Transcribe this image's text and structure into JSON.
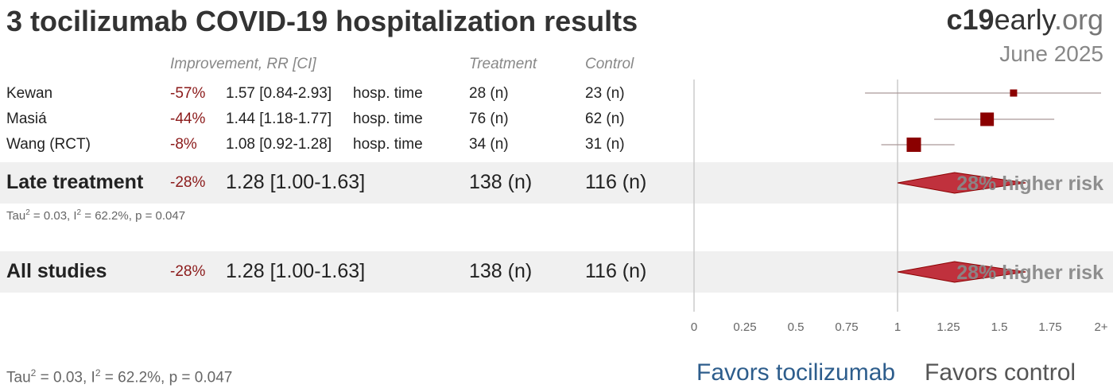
{
  "title": "3 tocilizumab COVID-19 hospitalization results",
  "brand": {
    "bold": "c19",
    "mid": "early",
    "light": ".org"
  },
  "date": "June 2025",
  "headers": {
    "improvement": "Improvement, RR [CI]",
    "treatment": "Treatment",
    "control": "Control"
  },
  "studies": [
    {
      "name": "Kewan",
      "improvement": "-57%",
      "ci_text": "1.57 [0.84-2.93]",
      "outcome": "hosp. time",
      "treatment": "28 (n)",
      "control": "23 (n)"
    },
    {
      "name": "Masiá",
      "improvement": "-44%",
      "ci_text": "1.44 [1.18-1.77]",
      "outcome": "hosp. time",
      "treatment": "76 (n)",
      "control": "62 (n)"
    },
    {
      "name": "Wang (RCT)",
      "improvement": "-8%",
      "ci_text": "1.08 [0.92-1.28]",
      "outcome": "hosp. time",
      "treatment": "34 (n)",
      "control": "31 (n)"
    }
  ],
  "late": {
    "name": "Late treatment",
    "improvement": "-28%",
    "ci_text": "1.28 [1.00-1.63]",
    "treatment": "138 (n)",
    "control": "116 (n)",
    "stats": "= 0.03, I",
    "stats2": "= 62.2%, p = 0.047",
    "label": "28% higher risk"
  },
  "all": {
    "name": "All studies",
    "improvement": "-28%",
    "ci_text": "1.28 [1.00-1.63]",
    "treatment": "138 (n)",
    "control": "116 (n)",
    "label": "28% higher risk"
  },
  "footer_stats": {
    "tau": "Tau",
    "a": "= 0.03, I",
    "b": "= 62.2%, p = 0.047"
  },
  "favors": {
    "left": "Favors tocilizumab",
    "right": "Favors control"
  },
  "colors": {
    "marker": "#8b0000",
    "diamond": "#c0313d",
    "favors_left": "#2d5d8c"
  },
  "chart_data": {
    "type": "forest",
    "xlabel": "",
    "ylabel": "",
    "xlim": [
      0,
      2
    ],
    "reference_line": 1,
    "tick_labels": [
      "0",
      "0.25",
      "0.5",
      "0.75",
      "1",
      "1.25",
      "1.5",
      "1.75",
      "2+"
    ],
    "tick_values": [
      0,
      0.25,
      0.5,
      0.75,
      1,
      1.25,
      1.5,
      1.75,
      2
    ],
    "studies": [
      {
        "name": "Kewan",
        "rr": 1.57,
        "lower": 0.84,
        "upper": 2.93,
        "weight": 0.15
      },
      {
        "name": "Masiá",
        "rr": 1.44,
        "lower": 1.18,
        "upper": 1.77,
        "weight": 0.55
      },
      {
        "name": "Wang (RCT)",
        "rr": 1.08,
        "lower": 0.92,
        "upper": 1.28,
        "weight": 0.6
      }
    ],
    "summaries": [
      {
        "name": "Late treatment",
        "rr": 1.28,
        "lower": 1.0,
        "upper": 1.63
      },
      {
        "name": "All studies",
        "rr": 1.28,
        "lower": 1.0,
        "upper": 1.63
      }
    ]
  }
}
